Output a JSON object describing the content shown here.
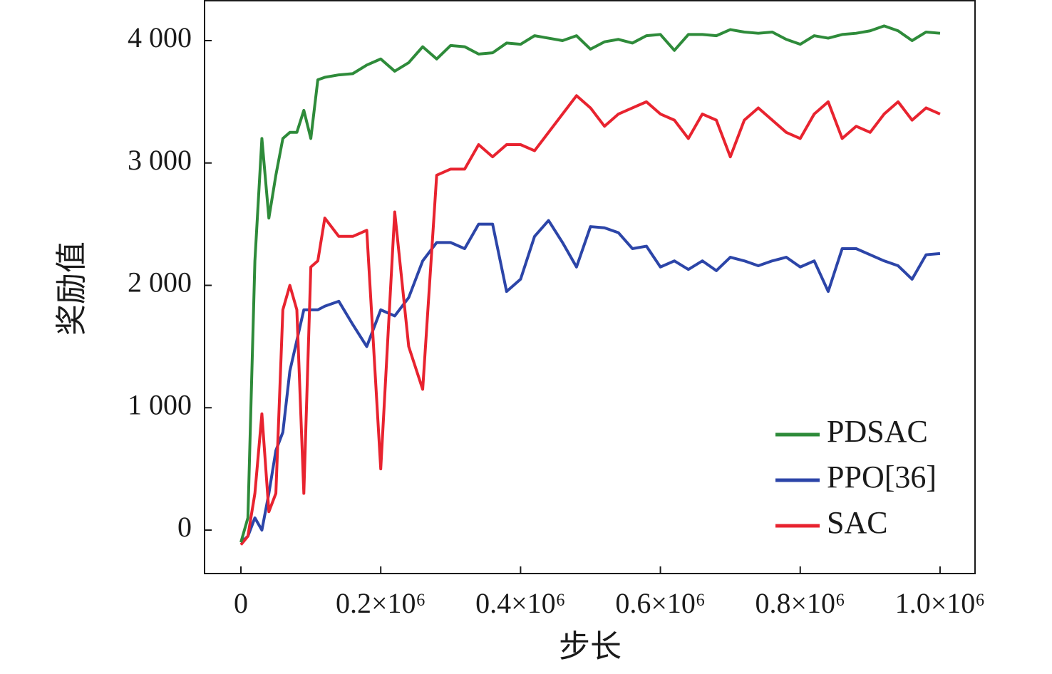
{
  "chart_data": {
    "type": "line",
    "x_label": "步长",
    "y_label": "奖励值",
    "x": [
      0,
      10000,
      20000,
      30000,
      40000,
      50000,
      60000,
      70000,
      80000,
      90000,
      100000,
      110000,
      120000,
      140000,
      160000,
      180000,
      200000,
      220000,
      240000,
      260000,
      280000,
      300000,
      320000,
      340000,
      360000,
      380000,
      400000,
      420000,
      440000,
      460000,
      480000,
      500000,
      520000,
      540000,
      560000,
      580000,
      600000,
      620000,
      640000,
      660000,
      680000,
      700000,
      720000,
      740000,
      760000,
      780000,
      800000,
      820000,
      840000,
      860000,
      880000,
      900000,
      920000,
      940000,
      960000,
      980000,
      1000000
    ],
    "series": [
      {
        "name": "PDSAC",
        "color": "#2e8b3a",
        "values": [
          -100,
          100,
          2200,
          3200,
          2550,
          2900,
          3200,
          3250,
          3250,
          3430,
          3200,
          3680,
          3700,
          3720,
          3730,
          3800,
          3850,
          3750,
          3820,
          3950,
          3850,
          3960,
          3950,
          3890,
          3900,
          3980,
          3970,
          4040,
          4020,
          4000,
          4040,
          3930,
          3990,
          4010,
          3980,
          4040,
          4050,
          3920,
          4050,
          4050,
          4040,
          4090,
          4070,
          4060,
          4070,
          4010,
          3970,
          4040,
          4020,
          4050,
          4060,
          4080,
          4120,
          4080,
          4000,
          4070,
          4060
        ]
      },
      {
        "name": "PPO[36]",
        "color": "#2c45a8",
        "values": [
          -100,
          -50,
          100,
          0,
          300,
          650,
          800,
          1300,
          1550,
          1800,
          1800,
          1800,
          1830,
          1870,
          1680,
          1500,
          1800,
          1750,
          1900,
          2200,
          2350,
          2350,
          2300,
          2500,
          2500,
          1950,
          2050,
          2400,
          2530,
          2350,
          2150,
          2480,
          2470,
          2430,
          2300,
          2320,
          2150,
          2200,
          2130,
          2200,
          2120,
          2230,
          2200,
          2160,
          2200,
          2230,
          2150,
          2200,
          1950,
          2300,
          2300,
          2250,
          2200,
          2160,
          2050,
          2250,
          2260
        ]
      },
      {
        "name": "SAC",
        "color": "#e8232f",
        "values": [
          -120,
          -50,
          300,
          950,
          150,
          300,
          1800,
          2000,
          1800,
          300,
          2150,
          2200,
          2550,
          2400,
          2400,
          2450,
          500,
          2600,
          1500,
          1150,
          2900,
          2950,
          2950,
          3150,
          3050,
          3150,
          3150,
          3100,
          3250,
          3400,
          3550,
          3450,
          3300,
          3400,
          3450,
          3500,
          3400,
          3350,
          3200,
          3400,
          3350,
          3050,
          3350,
          3450,
          3350,
          3250,
          3200,
          3400,
          3500,
          3200,
          3300,
          3250,
          3400,
          3500,
          3350,
          3450,
          3400
        ]
      }
    ],
    "xlim": [
      -52000,
      1050000
    ],
    "ylim": [
      -355,
      4326
    ],
    "xticks": [
      0,
      {
        "value": 200000,
        "label": "0.2×10⁶"
      },
      {
        "value": 400000,
        "label": "0.4×10⁶"
      },
      {
        "value": 600000,
        "label": "0.6×10⁶"
      },
      {
        "value": 800000,
        "label": "0.8×10⁶"
      },
      {
        "value": 1000000,
        "label": "1.0×10⁶"
      }
    ],
    "yticks": [
      0,
      {
        "value": 1000,
        "label": "1 000"
      },
      {
        "value": 2000,
        "label": "2 000"
      },
      {
        "value": 3000,
        "label": "3 000"
      },
      {
        "value": 4000,
        "label": "4 000"
      }
    ],
    "grid": false,
    "legend": "lower right"
  }
}
